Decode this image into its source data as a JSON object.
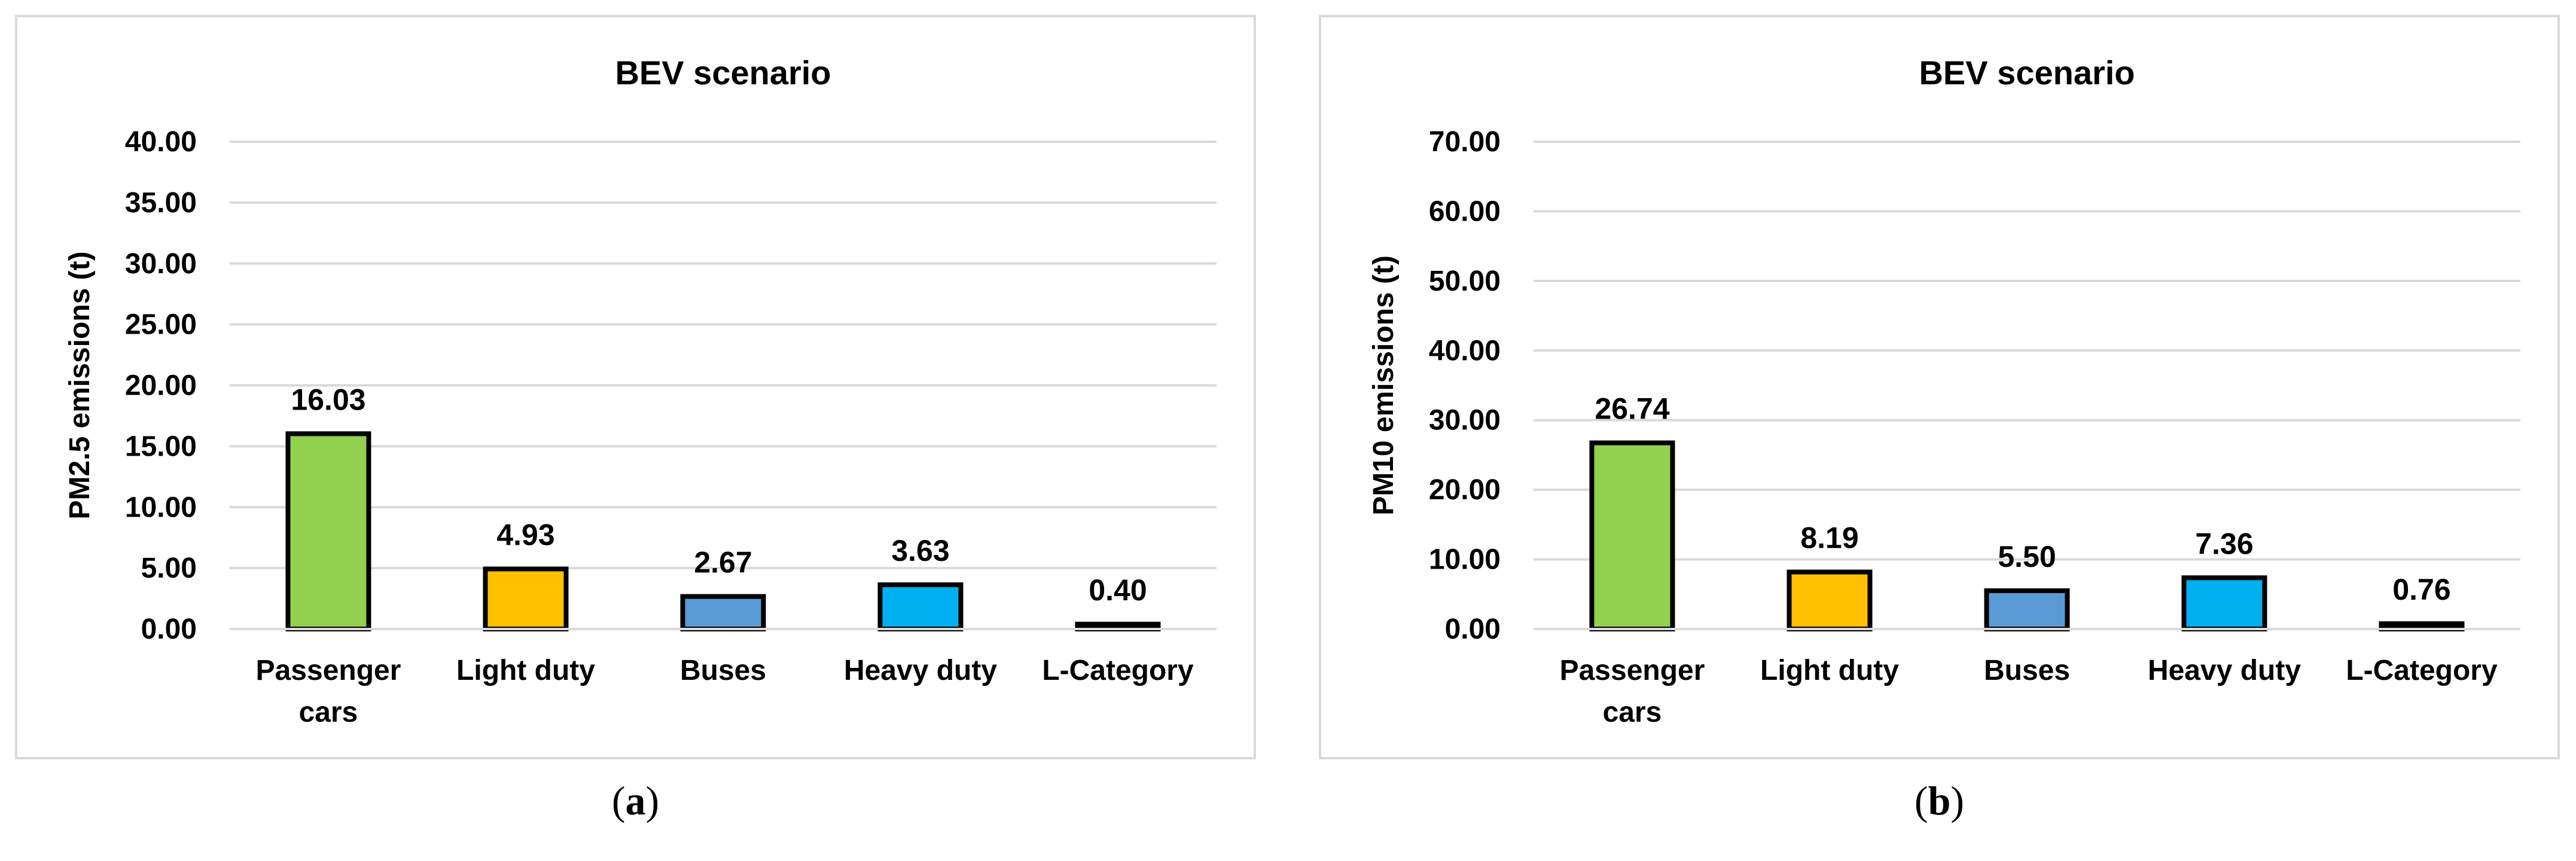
{
  "chart_data": [
    {
      "type": "bar",
      "title": "BEV scenario",
      "xlabel": "",
      "ylabel": "PM2.5 emissions (t)",
      "categories": [
        [
          "Passenger",
          "cars"
        ],
        [
          "Light duty"
        ],
        [
          "Buses"
        ],
        [
          "Heavy duty"
        ],
        [
          "L-Category"
        ]
      ],
      "values": [
        16.03,
        4.93,
        2.67,
        3.63,
        0.4
      ],
      "data_labels": [
        "16.03",
        "4.93",
        "2.67",
        "3.63",
        "0.40"
      ],
      "ylim": [
        0,
        40
      ],
      "yticks": [
        "0.00",
        "5.00",
        "10.00",
        "15.00",
        "20.00",
        "25.00",
        "30.00",
        "35.00",
        "40.00"
      ],
      "colors": [
        "#92d050",
        "#ffc000",
        "#5b9bd5",
        "#00b0f0",
        "#000000"
      ],
      "grid": true,
      "legend": "none",
      "caption": "a"
    },
    {
      "type": "bar",
      "title": "BEV scenario",
      "xlabel": "",
      "ylabel": "PM10 emissions (t)",
      "categories": [
        [
          "Passenger",
          "cars"
        ],
        [
          "Light duty"
        ],
        [
          "Buses"
        ],
        [
          "Heavy duty"
        ],
        [
          "L-Category"
        ]
      ],
      "values": [
        26.74,
        8.19,
        5.5,
        7.36,
        0.76
      ],
      "data_labels": [
        "26.74",
        "8.19",
        "5.50",
        "7.36",
        "0.76"
      ],
      "ylim": [
        0,
        70
      ],
      "yticks": [
        "0.00",
        "10.00",
        "20.00",
        "30.00",
        "40.00",
        "50.00",
        "60.00",
        "70.00"
      ],
      "colors": [
        "#92d050",
        "#ffc000",
        "#5b9bd5",
        "#00b0f0",
        "#000000"
      ],
      "grid": true,
      "legend": "none",
      "caption": "b"
    }
  ]
}
